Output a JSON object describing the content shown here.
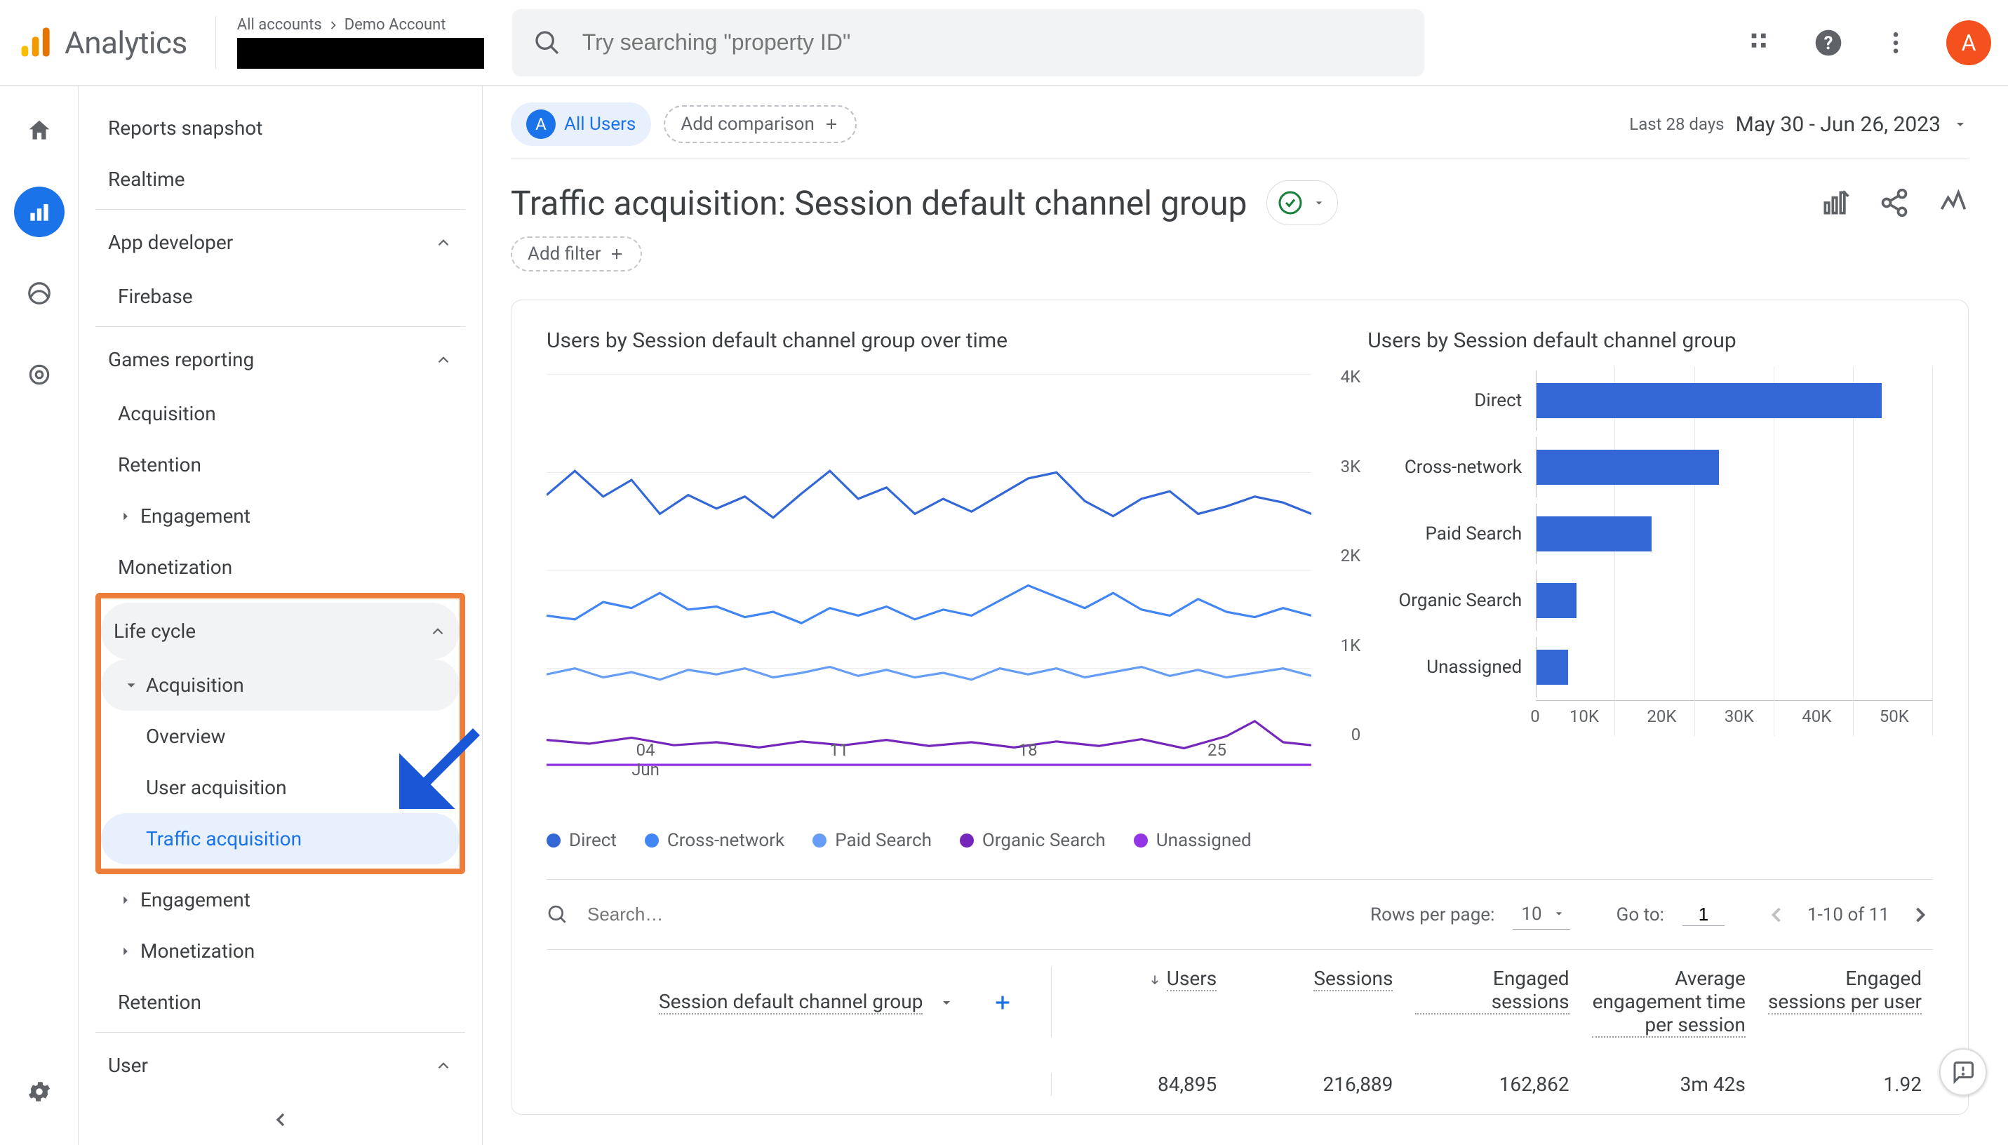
{
  "product_name": "Analytics",
  "breadcrumb": {
    "all_accounts": "All accounts",
    "account": "Demo Account"
  },
  "search": {
    "placeholder": "Try searching \"property ID\""
  },
  "avatar_letter": "A",
  "sidebar": {
    "reports_snapshot": "Reports snapshot",
    "realtime": "Realtime",
    "app_developer": "App developer",
    "firebase": "Firebase",
    "games_reporting": "Games reporting",
    "games_items": {
      "acquisition": "Acquisition",
      "retention": "Retention",
      "engagement": "Engagement",
      "monetization": "Monetization"
    },
    "life_cycle": "Life cycle",
    "lc_acquisition": "Acquisition",
    "lc_overview": "Overview",
    "lc_user_acq": "User acquisition",
    "lc_traffic_acq": "Traffic acquisition",
    "lc_engagement": "Engagement",
    "lc_monetization": "Monetization",
    "lc_retention": "Retention",
    "user": "User"
  },
  "chips": {
    "all_users": "All Users",
    "add_comparison": "Add comparison",
    "last_28": "Last 28 days",
    "date_range": "May 30 - Jun 26, 2023"
  },
  "title": "Traffic acquisition: Session default channel group",
  "add_filter": "Add filter",
  "line_chart": {
    "title": "Users by Session default channel group over time",
    "y_ticks": [
      "4K",
      "3K",
      "2K",
      "1K",
      "0"
    ],
    "x_ticks": [
      "04\nJun",
      "11",
      "18",
      "25"
    ],
    "colors": {
      "direct": "#3367d6",
      "cross": "#4285f4",
      "paid": "#669df6",
      "organic": "#7627bb",
      "unassigned": "#9334e6"
    },
    "legend": [
      "Direct",
      "Cross-network",
      "Paid Search",
      "Organic Search",
      "Unassigned"
    ]
  },
  "bar_chart": {
    "title": "Users by Session default channel group",
    "bars": [
      {
        "label": "Direct",
        "width_pct": 87
      },
      {
        "label": "Cross-network",
        "width_pct": 46
      },
      {
        "label": "Paid Search",
        "width_pct": 29
      },
      {
        "label": "Organic Search",
        "width_pct": 10
      },
      {
        "label": "Unassigned",
        "width_pct": 8
      }
    ],
    "x_ticks": [
      "0",
      "10K",
      "20K",
      "30K",
      "40K",
      "50K"
    ],
    "bar_color": "#3367d6"
  },
  "table": {
    "search_placeholder": "Search…",
    "rows_per_page_label": "Rows per page:",
    "rows_per_page": "10",
    "go_to_label": "Go to:",
    "go_to": "1",
    "range": "1-10 of 11",
    "dimension": "Session default channel group",
    "metrics": [
      "Users",
      "Sessions",
      "Engaged sessions",
      "Average engagement time per session",
      "Engaged sessions per user"
    ],
    "totals": [
      "84,895",
      "216,889",
      "162,862",
      "3m 42s",
      "1.92"
    ]
  }
}
